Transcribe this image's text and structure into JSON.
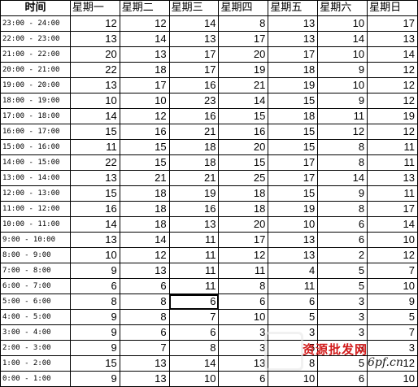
{
  "header": {
    "time_label": "时间",
    "days": [
      "星期一",
      "星期二",
      "星期三",
      "星期四",
      "星期五",
      "星期六",
      "星期日"
    ]
  },
  "rows": [
    {
      "time": "23:00 - 24:00",
      "values": [
        12,
        12,
        14,
        8,
        13,
        10,
        17
      ]
    },
    {
      "time": "22:00 - 23:00",
      "values": [
        13,
        14,
        13,
        17,
        13,
        14,
        13
      ]
    },
    {
      "time": "21:00 - 22:00",
      "values": [
        20,
        13,
        17,
        20,
        17,
        10,
        14
      ]
    },
    {
      "time": "20:00 - 21:00",
      "values": [
        22,
        18,
        17,
        19,
        18,
        9,
        12
      ]
    },
    {
      "time": "19:00 - 20:00",
      "values": [
        13,
        17,
        16,
        21,
        19,
        10,
        12
      ]
    },
    {
      "time": "18:00 - 19:00",
      "values": [
        10,
        10,
        23,
        14,
        15,
        9,
        12
      ]
    },
    {
      "time": "17:00 - 18:00",
      "values": [
        14,
        12,
        16,
        15,
        18,
        11,
        19
      ]
    },
    {
      "time": "16:00 - 17:00",
      "values": [
        15,
        16,
        21,
        16,
        15,
        12,
        12
      ]
    },
    {
      "time": "15:00 - 16:00",
      "values": [
        11,
        15,
        18,
        20,
        15,
        8,
        11
      ]
    },
    {
      "time": "14:00 - 15:00",
      "values": [
        22,
        15,
        18,
        15,
        17,
        8,
        11
      ]
    },
    {
      "time": "13:00 - 14:00",
      "values": [
        13,
        21,
        21,
        25,
        17,
        14,
        13
      ]
    },
    {
      "time": "12:00 - 13:00",
      "values": [
        15,
        18,
        19,
        18,
        15,
        9,
        11
      ]
    },
    {
      "time": "11:00 - 12:00",
      "values": [
        16,
        18,
        16,
        18,
        19,
        8,
        17
      ]
    },
    {
      "time": "10:00 - 11:00",
      "values": [
        14,
        18,
        13,
        20,
        10,
        6,
        14
      ]
    },
    {
      "time": "9:00 - 10:00",
      "values": [
        13,
        14,
        11,
        17,
        13,
        6,
        10
      ]
    },
    {
      "time": "8:00 - 9:00",
      "values": [
        10,
        12,
        11,
        12,
        13,
        2,
        12
      ]
    },
    {
      "time": "7:00 - 8:00",
      "values": [
        9,
        13,
        11,
        11,
        4,
        5,
        7
      ]
    },
    {
      "time": "6:00 - 7:00",
      "values": [
        6,
        6,
        11,
        8,
        11,
        5,
        10
      ]
    },
    {
      "time": "5:00 - 6:00",
      "values": [
        8,
        8,
        6,
        6,
        6,
        3,
        9
      ]
    },
    {
      "time": "4:00 - 5:00",
      "values": [
        9,
        8,
        7,
        10,
        5,
        3,
        5
      ]
    },
    {
      "time": "3:00 - 4:00",
      "values": [
        9,
        6,
        6,
        3,
        3,
        3,
        7
      ]
    },
    {
      "time": "2:00 - 3:00",
      "values": [
        9,
        7,
        8,
        3,
        5,
        3,
        3
      ]
    },
    {
      "time": "1:00 - 2:00",
      "values": [
        15,
        13,
        14,
        13,
        8,
        5,
        12
      ]
    },
    {
      "time": "0:00 - 1:00",
      "values": [
        9,
        13,
        10,
        6,
        10,
        6,
        10
      ]
    }
  ],
  "selected_cell": {
    "row": 18,
    "col": 2
  },
  "watermark": {
    "text_cn": "资源批发网",
    "text_url": "6pf.cn"
  }
}
